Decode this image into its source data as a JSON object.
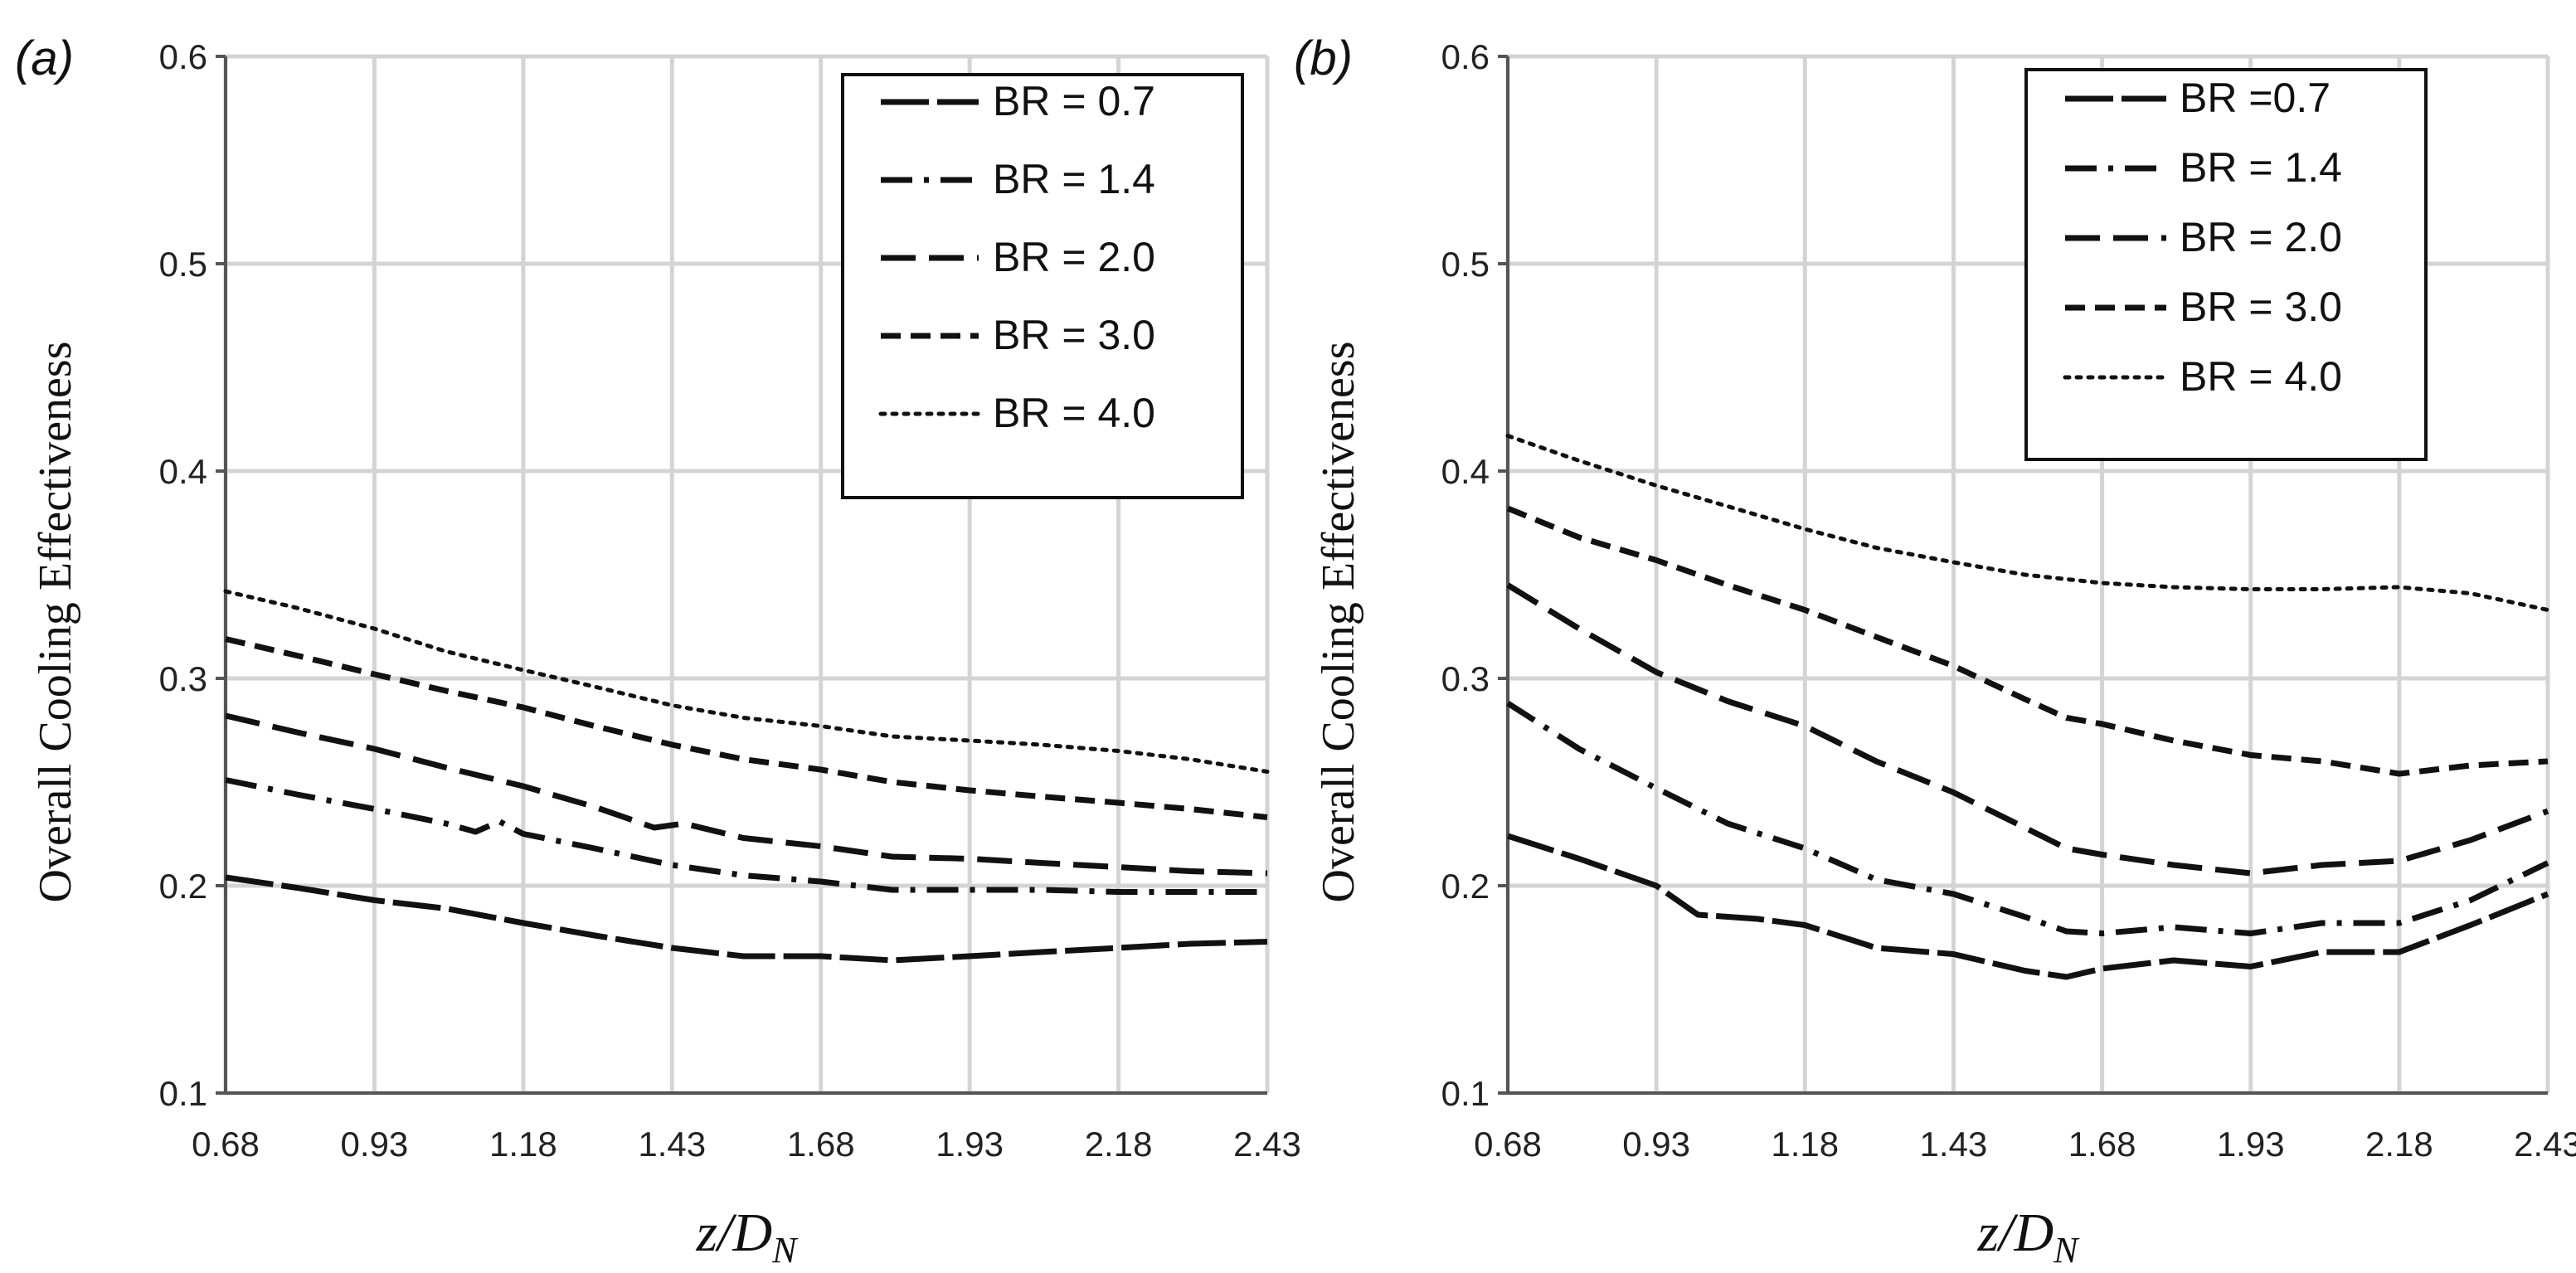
{
  "chart_data": [
    {
      "type": "line",
      "panel_label": "(a)",
      "xlabel_base": "z/D",
      "xlabel_sub": "N",
      "ylabel": "Overall Cooling Effectiveness",
      "xlim": [
        0.68,
        2.43
      ],
      "ylim": [
        0.1,
        0.6
      ],
      "x_ticks": [
        "0.68",
        "0.93",
        "1.18",
        "1.43",
        "1.68",
        "1.93",
        "2.18",
        "2.43"
      ],
      "y_ticks": [
        "0.1",
        "0.2",
        "0.3",
        "0.4",
        "0.5",
        "0.6"
      ],
      "grid": true,
      "legend_position": "top-right",
      "series": [
        {
          "name": "BR = 0.7",
          "style": "solid-long-dash",
          "x": [
            0.68,
            0.8,
            0.93,
            1.05,
            1.18,
            1.3,
            1.43,
            1.55,
            1.68,
            1.8,
            1.93,
            2.05,
            2.18,
            2.3,
            2.43
          ],
          "y": [
            0.204,
            0.199,
            0.193,
            0.189,
            0.182,
            0.176,
            0.17,
            0.166,
            0.166,
            0.164,
            0.166,
            0.168,
            0.17,
            0.172,
            0.173
          ]
        },
        {
          "name": "BR = 1.4",
          "style": "dash-dot",
          "x": [
            0.68,
            0.8,
            0.93,
            1.05,
            1.1,
            1.14,
            1.18,
            1.3,
            1.43,
            1.55,
            1.68,
            1.8,
            1.93,
            2.05,
            2.18,
            2.3,
            2.43
          ],
          "y": [
            0.251,
            0.244,
            0.237,
            0.23,
            0.226,
            0.231,
            0.225,
            0.218,
            0.21,
            0.205,
            0.202,
            0.198,
            0.198,
            0.198,
            0.197,
            0.197,
            0.197
          ]
        },
        {
          "name": "BR = 2.0",
          "style": "long-dash",
          "x": [
            0.68,
            0.8,
            0.93,
            1.05,
            1.18,
            1.3,
            1.4,
            1.45,
            1.55,
            1.68,
            1.8,
            1.93,
            2.05,
            2.18,
            2.3,
            2.43
          ],
          "y": [
            0.282,
            0.274,
            0.266,
            0.257,
            0.248,
            0.238,
            0.228,
            0.23,
            0.223,
            0.219,
            0.214,
            0.213,
            0.211,
            0.209,
            0.207,
            0.206
          ]
        },
        {
          "name": "BR = 3.0",
          "style": "short-dash",
          "x": [
            0.68,
            0.8,
            0.93,
            1.05,
            1.18,
            1.3,
            1.43,
            1.55,
            1.68,
            1.8,
            1.93,
            2.05,
            2.18,
            2.3,
            2.43
          ],
          "y": [
            0.319,
            0.311,
            0.302,
            0.294,
            0.286,
            0.277,
            0.268,
            0.261,
            0.256,
            0.25,
            0.246,
            0.243,
            0.24,
            0.237,
            0.233
          ]
        },
        {
          "name": "BR = 4.0",
          "style": "dotted",
          "x": [
            0.68,
            0.8,
            0.93,
            1.05,
            1.18,
            1.3,
            1.43,
            1.55,
            1.68,
            1.8,
            1.93,
            2.05,
            2.18,
            2.3,
            2.43
          ],
          "y": [
            0.342,
            0.334,
            0.324,
            0.313,
            0.304,
            0.296,
            0.287,
            0.281,
            0.277,
            0.272,
            0.27,
            0.268,
            0.265,
            0.261,
            0.255
          ]
        }
      ]
    },
    {
      "type": "line",
      "panel_label": "(b)",
      "xlabel_base": "z/D",
      "xlabel_sub": "N",
      "ylabel": "Overall Cooling Effectiveness",
      "xlim": [
        0.68,
        2.43
      ],
      "ylim": [
        0.1,
        0.6
      ],
      "x_ticks": [
        "0.68",
        "0.93",
        "1.18",
        "1.43",
        "1.68",
        "1.93",
        "2.18",
        "2.43"
      ],
      "y_ticks": [
        "0.1",
        "0.2",
        "0.3",
        "0.4",
        "0.5",
        "0.6"
      ],
      "grid": true,
      "legend_position": "top-right",
      "series": [
        {
          "name": "BR =0.7",
          "style": "solid-long-dash",
          "x": [
            0.68,
            0.8,
            0.93,
            1.0,
            1.1,
            1.18,
            1.3,
            1.43,
            1.55,
            1.62,
            1.68,
            1.8,
            1.93,
            2.05,
            2.18,
            2.3,
            2.43
          ],
          "y": [
            0.224,
            0.213,
            0.2,
            0.186,
            0.184,
            0.181,
            0.17,
            0.167,
            0.159,
            0.156,
            0.16,
            0.164,
            0.161,
            0.168,
            0.168,
            0.181,
            0.196
          ]
        },
        {
          "name": "BR = 1.4",
          "style": "dash-dot",
          "x": [
            0.68,
            0.8,
            0.93,
            1.05,
            1.18,
            1.3,
            1.43,
            1.55,
            1.62,
            1.68,
            1.8,
            1.93,
            2.05,
            2.18,
            2.3,
            2.43
          ],
          "y": [
            0.288,
            0.266,
            0.247,
            0.23,
            0.218,
            0.203,
            0.196,
            0.185,
            0.178,
            0.177,
            0.18,
            0.177,
            0.182,
            0.182,
            0.193,
            0.211
          ]
        },
        {
          "name": "BR = 2.0",
          "style": "long-dash",
          "x": [
            0.68,
            0.8,
            0.93,
            1.05,
            1.18,
            1.3,
            1.43,
            1.55,
            1.62,
            1.68,
            1.8,
            1.93,
            2.05,
            2.18,
            2.3,
            2.43
          ],
          "y": [
            0.345,
            0.324,
            0.303,
            0.289,
            0.277,
            0.26,
            0.245,
            0.228,
            0.218,
            0.215,
            0.21,
            0.206,
            0.21,
            0.212,
            0.222,
            0.236
          ]
        },
        {
          "name": "BR = 3.0",
          "style": "short-dash",
          "x": [
            0.68,
            0.8,
            0.93,
            1.05,
            1.18,
            1.3,
            1.43,
            1.55,
            1.62,
            1.68,
            1.8,
            1.93,
            2.05,
            2.18,
            2.3,
            2.43
          ],
          "y": [
            0.382,
            0.368,
            0.357,
            0.345,
            0.333,
            0.32,
            0.306,
            0.29,
            0.281,
            0.278,
            0.27,
            0.263,
            0.26,
            0.254,
            0.258,
            0.26
          ]
        },
        {
          "name": "BR = 4.0",
          "style": "dotted",
          "x": [
            0.68,
            0.8,
            0.93,
            1.05,
            1.18,
            1.3,
            1.43,
            1.55,
            1.68,
            1.8,
            1.93,
            2.05,
            2.18,
            2.3,
            2.43
          ],
          "y": [
            0.417,
            0.405,
            0.393,
            0.383,
            0.372,
            0.363,
            0.356,
            0.35,
            0.346,
            0.344,
            0.343,
            0.343,
            0.344,
            0.341,
            0.333
          ]
        }
      ]
    }
  ]
}
